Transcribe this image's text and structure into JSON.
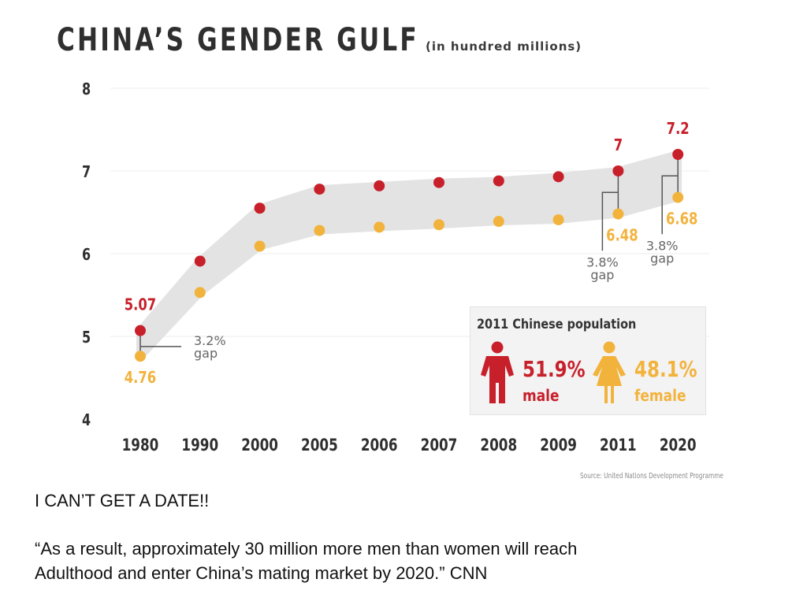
{
  "colors": {
    "male": "#c8202b",
    "female": "#f2b33d",
    "band": "#e3e3e3",
    "axis": "#2f2f2f",
    "gap_line": "#555555"
  },
  "source": "Source: United Nations Development Programme",
  "captions": {
    "line1": "I CAN’T GET A DATE!!",
    "line2": "“As a result, approximately 30 million more men than women will reach",
    "line3": "Adulthood and enter China’s mating market by 2020.”  CNN"
  },
  "legend": {
    "title": "2011 Chinese population",
    "male": {
      "icon": "male-person-icon",
      "percent": "51.9%",
      "label": "male"
    },
    "female": {
      "icon": "female-person-icon",
      "percent": "48.1%",
      "label": "female"
    }
  },
  "chart_data": {
    "type": "scatter",
    "title": "CHINA’S GENDER GULF",
    "subtitle": "(in hundred millions)",
    "categories": [
      "1980",
      "1990",
      "2000",
      "2005",
      "2006",
      "2007",
      "2008",
      "2009",
      "2011",
      "2020"
    ],
    "series": [
      {
        "key": "male",
        "values": [
          5.07,
          5.91,
          6.55,
          6.78,
          6.82,
          6.86,
          6.88,
          6.93,
          7.0,
          7.2
        ]
      },
      {
        "key": "female",
        "values": [
          4.76,
          5.53,
          6.09,
          6.28,
          6.32,
          6.35,
          6.39,
          6.41,
          6.48,
          6.68
        ]
      }
    ],
    "ylim": [
      4,
      8
    ],
    "yticks": [
      "4",
      "5",
      "6",
      "7",
      "8"
    ],
    "grid": true,
    "value_labels": [
      {
        "series": "male",
        "index": 0,
        "text": "5.07"
      },
      {
        "series": "female",
        "index": 0,
        "text": "4.76"
      },
      {
        "series": "male",
        "index": 8,
        "text": "7"
      },
      {
        "series": "female",
        "index": 8,
        "text": "6.48"
      },
      {
        "series": "male",
        "index": 9,
        "text": "7.2"
      },
      {
        "series": "female",
        "index": 9,
        "text": "6.68"
      }
    ],
    "gap_annotations": [
      {
        "index": 0,
        "line1": "3.2%",
        "line2": "gap"
      },
      {
        "index": 8,
        "line1": "3.8%",
        "line2": "gap"
      },
      {
        "index": 9,
        "line1": "3.8%",
        "line2": "gap"
      }
    ]
  }
}
